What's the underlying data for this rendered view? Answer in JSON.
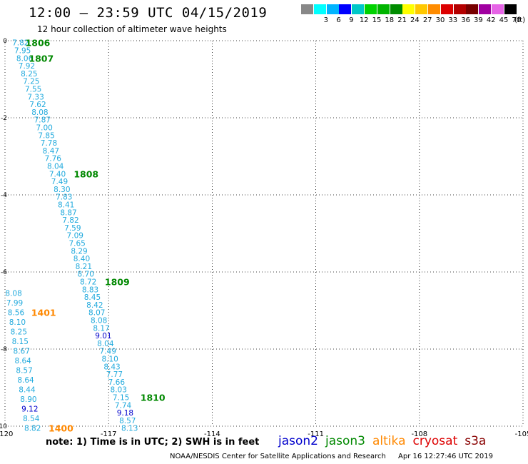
{
  "header": {
    "title": "12:00 — 23:59 UTC 04/15/2019",
    "subtitle": "12 hour collection of altimeter wave heights"
  },
  "legend": {
    "unit": "(ft)",
    "items": [
      {
        "label": "",
        "color": "#888888"
      },
      {
        "label": "3",
        "color": "#00ffff"
      },
      {
        "label": "6",
        "color": "#00b4ff"
      },
      {
        "label": "9",
        "color": "#0000ff"
      },
      {
        "label": "12",
        "color": "#00c8c8"
      },
      {
        "label": "15",
        "color": "#00d200"
      },
      {
        "label": "18",
        "color": "#00b400"
      },
      {
        "label": "21",
        "color": "#008c00"
      },
      {
        "label": "24",
        "color": "#ffff00"
      },
      {
        "label": "27",
        "color": "#ffc800"
      },
      {
        "label": "30",
        "color": "#ff8c00"
      },
      {
        "label": "33",
        "color": "#dc0000"
      },
      {
        "label": "36",
        "color": "#b40000"
      },
      {
        "label": "39",
        "color": "#780000"
      },
      {
        "label": "42",
        "color": "#a000a0"
      },
      {
        "label": "45",
        "color": "#e664e6"
      },
      {
        "label": "70",
        "color": "#000000"
      }
    ]
  },
  "map": {
    "lon_range": [
      -120,
      -105
    ],
    "lat_range": [
      0,
      -10
    ],
    "lon_ticks": [
      "-120",
      "-117",
      "-114",
      "-111",
      "-108",
      "-105"
    ],
    "lat_ticks": [
      "0",
      "-2",
      "-4",
      "-6",
      "-8",
      "-10"
    ],
    "colors": {
      "jason2": "#0000cc",
      "jason3": "#008800",
      "altika": "#ff8800",
      "jason3_value": "#22aadd"
    },
    "tracks": [
      {
        "mission": "jason3",
        "points": [
          {
            "lon": -119.55,
            "lat": -0.05,
            "value": "7.82"
          },
          {
            "lon": -119.49,
            "lat": -0.25,
            "value": "7.95"
          },
          {
            "lon": -119.43,
            "lat": -0.45,
            "value": "8.06"
          },
          {
            "lon": -119.37,
            "lat": -0.65,
            "value": "7.92"
          },
          {
            "lon": -119.3,
            "lat": -0.85,
            "value": "8.25"
          },
          {
            "lon": -119.24,
            "lat": -1.05,
            "value": "7.25"
          },
          {
            "lon": -119.18,
            "lat": -1.25,
            "value": "7.55"
          },
          {
            "lon": -119.11,
            "lat": -1.45,
            "value": "7.33"
          },
          {
            "lon": -119.05,
            "lat": -1.65,
            "value": "7.62"
          },
          {
            "lon": -118.99,
            "lat": -1.85,
            "value": "8.08"
          },
          {
            "lon": -118.92,
            "lat": -2.05,
            "value": "7.87"
          },
          {
            "lon": -118.86,
            "lat": -2.25,
            "value": "7.00"
          },
          {
            "lon": -118.8,
            "lat": -2.45,
            "value": "7.85"
          },
          {
            "lon": -118.73,
            "lat": -2.65,
            "value": "7.78"
          },
          {
            "lon": -118.67,
            "lat": -2.85,
            "value": "8.47"
          },
          {
            "lon": -118.61,
            "lat": -3.05,
            "value": "7.76"
          },
          {
            "lon": -118.54,
            "lat": -3.25,
            "value": "8.04"
          },
          {
            "lon": -118.48,
            "lat": -3.45,
            "value": "7.40"
          },
          {
            "lon": -118.42,
            "lat": -3.65,
            "value": "7.49"
          },
          {
            "lon": -118.35,
            "lat": -3.85,
            "value": "8.30"
          },
          {
            "lon": -118.29,
            "lat": -4.05,
            "value": "7.83"
          },
          {
            "lon": -118.23,
            "lat": -4.25,
            "value": "8.41"
          },
          {
            "lon": -118.16,
            "lat": -4.45,
            "value": "8.87"
          },
          {
            "lon": -118.1,
            "lat": -4.65,
            "value": "7.82"
          },
          {
            "lon": -118.04,
            "lat": -4.85,
            "value": "7.59"
          },
          {
            "lon": -117.97,
            "lat": -5.05,
            "value": "7.09"
          },
          {
            "lon": -117.91,
            "lat": -5.25,
            "value": "7.65"
          },
          {
            "lon": -117.85,
            "lat": -5.45,
            "value": "8.29"
          },
          {
            "lon": -117.78,
            "lat": -5.65,
            "value": "8.40"
          },
          {
            "lon": -117.72,
            "lat": -5.85,
            "value": "8.21"
          },
          {
            "lon": -117.66,
            "lat": -6.05,
            "value": "8.70"
          },
          {
            "lon": -117.59,
            "lat": -6.25,
            "value": "8.72"
          },
          {
            "lon": -117.53,
            "lat": -6.45,
            "value": "8.83"
          },
          {
            "lon": -117.47,
            "lat": -6.65,
            "value": "8.45"
          },
          {
            "lon": -117.4,
            "lat": -6.85,
            "value": "8.42"
          },
          {
            "lon": -117.34,
            "lat": -7.05,
            "value": "8.07"
          },
          {
            "lon": -117.28,
            "lat": -7.25,
            "value": "8.08"
          },
          {
            "lon": -117.21,
            "lat": -7.45,
            "value": "8.17"
          },
          {
            "lon": -117.15,
            "lat": -7.65,
            "value": "9.01",
            "mission": "jason2"
          },
          {
            "lon": -117.09,
            "lat": -7.85,
            "value": "8.04"
          },
          {
            "lon": -117.02,
            "lat": -8.05,
            "value": "7.49"
          },
          {
            "lon": -116.96,
            "lat": -8.25,
            "value": "8.10"
          },
          {
            "lon": -116.9,
            "lat": -8.45,
            "value": "8.43"
          },
          {
            "lon": -116.83,
            "lat": -8.65,
            "value": "7.77"
          },
          {
            "lon": -116.77,
            "lat": -8.85,
            "value": "7.66"
          },
          {
            "lon": -116.71,
            "lat": -9.05,
            "value": "8.03"
          },
          {
            "lon": -116.64,
            "lat": -9.25,
            "value": "7.15"
          },
          {
            "lon": -116.58,
            "lat": -9.45,
            "value": "7.74"
          },
          {
            "lon": -116.52,
            "lat": -9.65,
            "value": "9.18",
            "mission": "jason2"
          },
          {
            "lon": -116.45,
            "lat": -9.85,
            "value": "8.57"
          },
          {
            "lon": -116.39,
            "lat": -10.05,
            "value": "8.13"
          }
        ]
      },
      {
        "mission": "altika",
        "points": [
          {
            "lon": -119.75,
            "lat": -6.55,
            "value": "8.08"
          },
          {
            "lon": -119.72,
            "lat": -6.8,
            "value": "7.99"
          },
          {
            "lon": -119.68,
            "lat": -7.05,
            "value": "8.56"
          },
          {
            "lon": -119.64,
            "lat": -7.3,
            "value": "8.10"
          },
          {
            "lon": -119.6,
            "lat": -7.55,
            "value": "8.25"
          },
          {
            "lon": -119.56,
            "lat": -7.8,
            "value": "8.15"
          },
          {
            "lon": -119.52,
            "lat": -8.05,
            "value": "8.67"
          },
          {
            "lon": -119.48,
            "lat": -8.3,
            "value": "8.64"
          },
          {
            "lon": -119.44,
            "lat": -8.55,
            "value": "8.57"
          },
          {
            "lon": -119.4,
            "lat": -8.8,
            "value": "8.64"
          },
          {
            "lon": -119.36,
            "lat": -9.05,
            "value": "8.44"
          },
          {
            "lon": -119.32,
            "lat": -9.3,
            "value": "8.90"
          },
          {
            "lon": -119.28,
            "lat": -9.55,
            "value": "9.12",
            "mission": "jason2"
          },
          {
            "lon": -119.24,
            "lat": -9.8,
            "value": "8.54"
          },
          {
            "lon": -119.2,
            "lat": -10.05,
            "value": "8.82"
          }
        ]
      }
    ],
    "time_labels": [
      {
        "lon": -119.05,
        "lat": -0.05,
        "text": "1806",
        "mission": "jason3"
      },
      {
        "lon": -118.95,
        "lat": -0.45,
        "text": "1807",
        "mission": "jason3"
      },
      {
        "lon": -117.65,
        "lat": -3.45,
        "text": "1808",
        "mission": "jason3"
      },
      {
        "lon": -116.75,
        "lat": -6.25,
        "text": "1809",
        "mission": "jason3"
      },
      {
        "lon": -115.72,
        "lat": -9.25,
        "text": "1810",
        "mission": "jason3"
      },
      {
        "lon": -118.88,
        "lat": -7.05,
        "text": "1401",
        "mission": "altika"
      },
      {
        "lon": -118.38,
        "lat": -10.05,
        "text": "1400",
        "mission": "altika"
      }
    ]
  },
  "note": "note:  1) Time is in UTC;  2) SWH is in feet",
  "missions": [
    {
      "name": "jason2",
      "color": "#0000cc"
    },
    {
      "name": "jason3",
      "color": "#008800"
    },
    {
      "name": "altika",
      "color": "#ff8800"
    },
    {
      "name": "cryosat",
      "color": "#dd0000"
    },
    {
      "name": "s3a",
      "color": "#880000"
    }
  ],
  "footer": {
    "credit": "NOAA/NESDIS Center for Satellite Applications and Research",
    "timestamp": "Apr 16 12:27:46 UTC 2019"
  }
}
